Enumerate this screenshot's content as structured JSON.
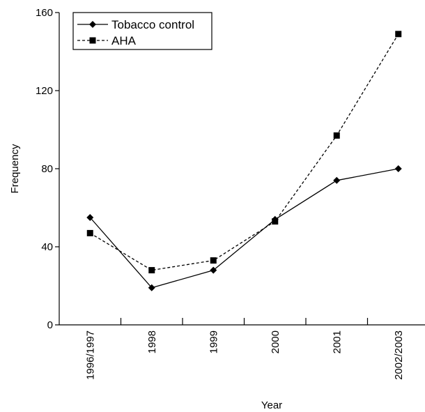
{
  "chart_data": {
    "type": "line",
    "xlabel": "Year",
    "ylabel": "Frequency",
    "categories": [
      "1996/1997",
      "1998",
      "1999",
      "2000",
      "2001",
      "2002/2003"
    ],
    "ylim": [
      0,
      160
    ],
    "yticks": [
      0,
      40,
      80,
      120,
      160
    ],
    "legend_position": "top-left",
    "grid": false,
    "series": [
      {
        "name": "Tobacco control",
        "marker": "diamond",
        "line_style": "solid",
        "color": "#000000",
        "values": [
          55,
          19,
          28,
          54,
          74,
          80
        ]
      },
      {
        "name": "AHA",
        "marker": "square",
        "line_style": "dashed",
        "color": "#000000",
        "values": [
          47,
          28,
          33,
          53,
          97,
          149
        ]
      }
    ]
  }
}
